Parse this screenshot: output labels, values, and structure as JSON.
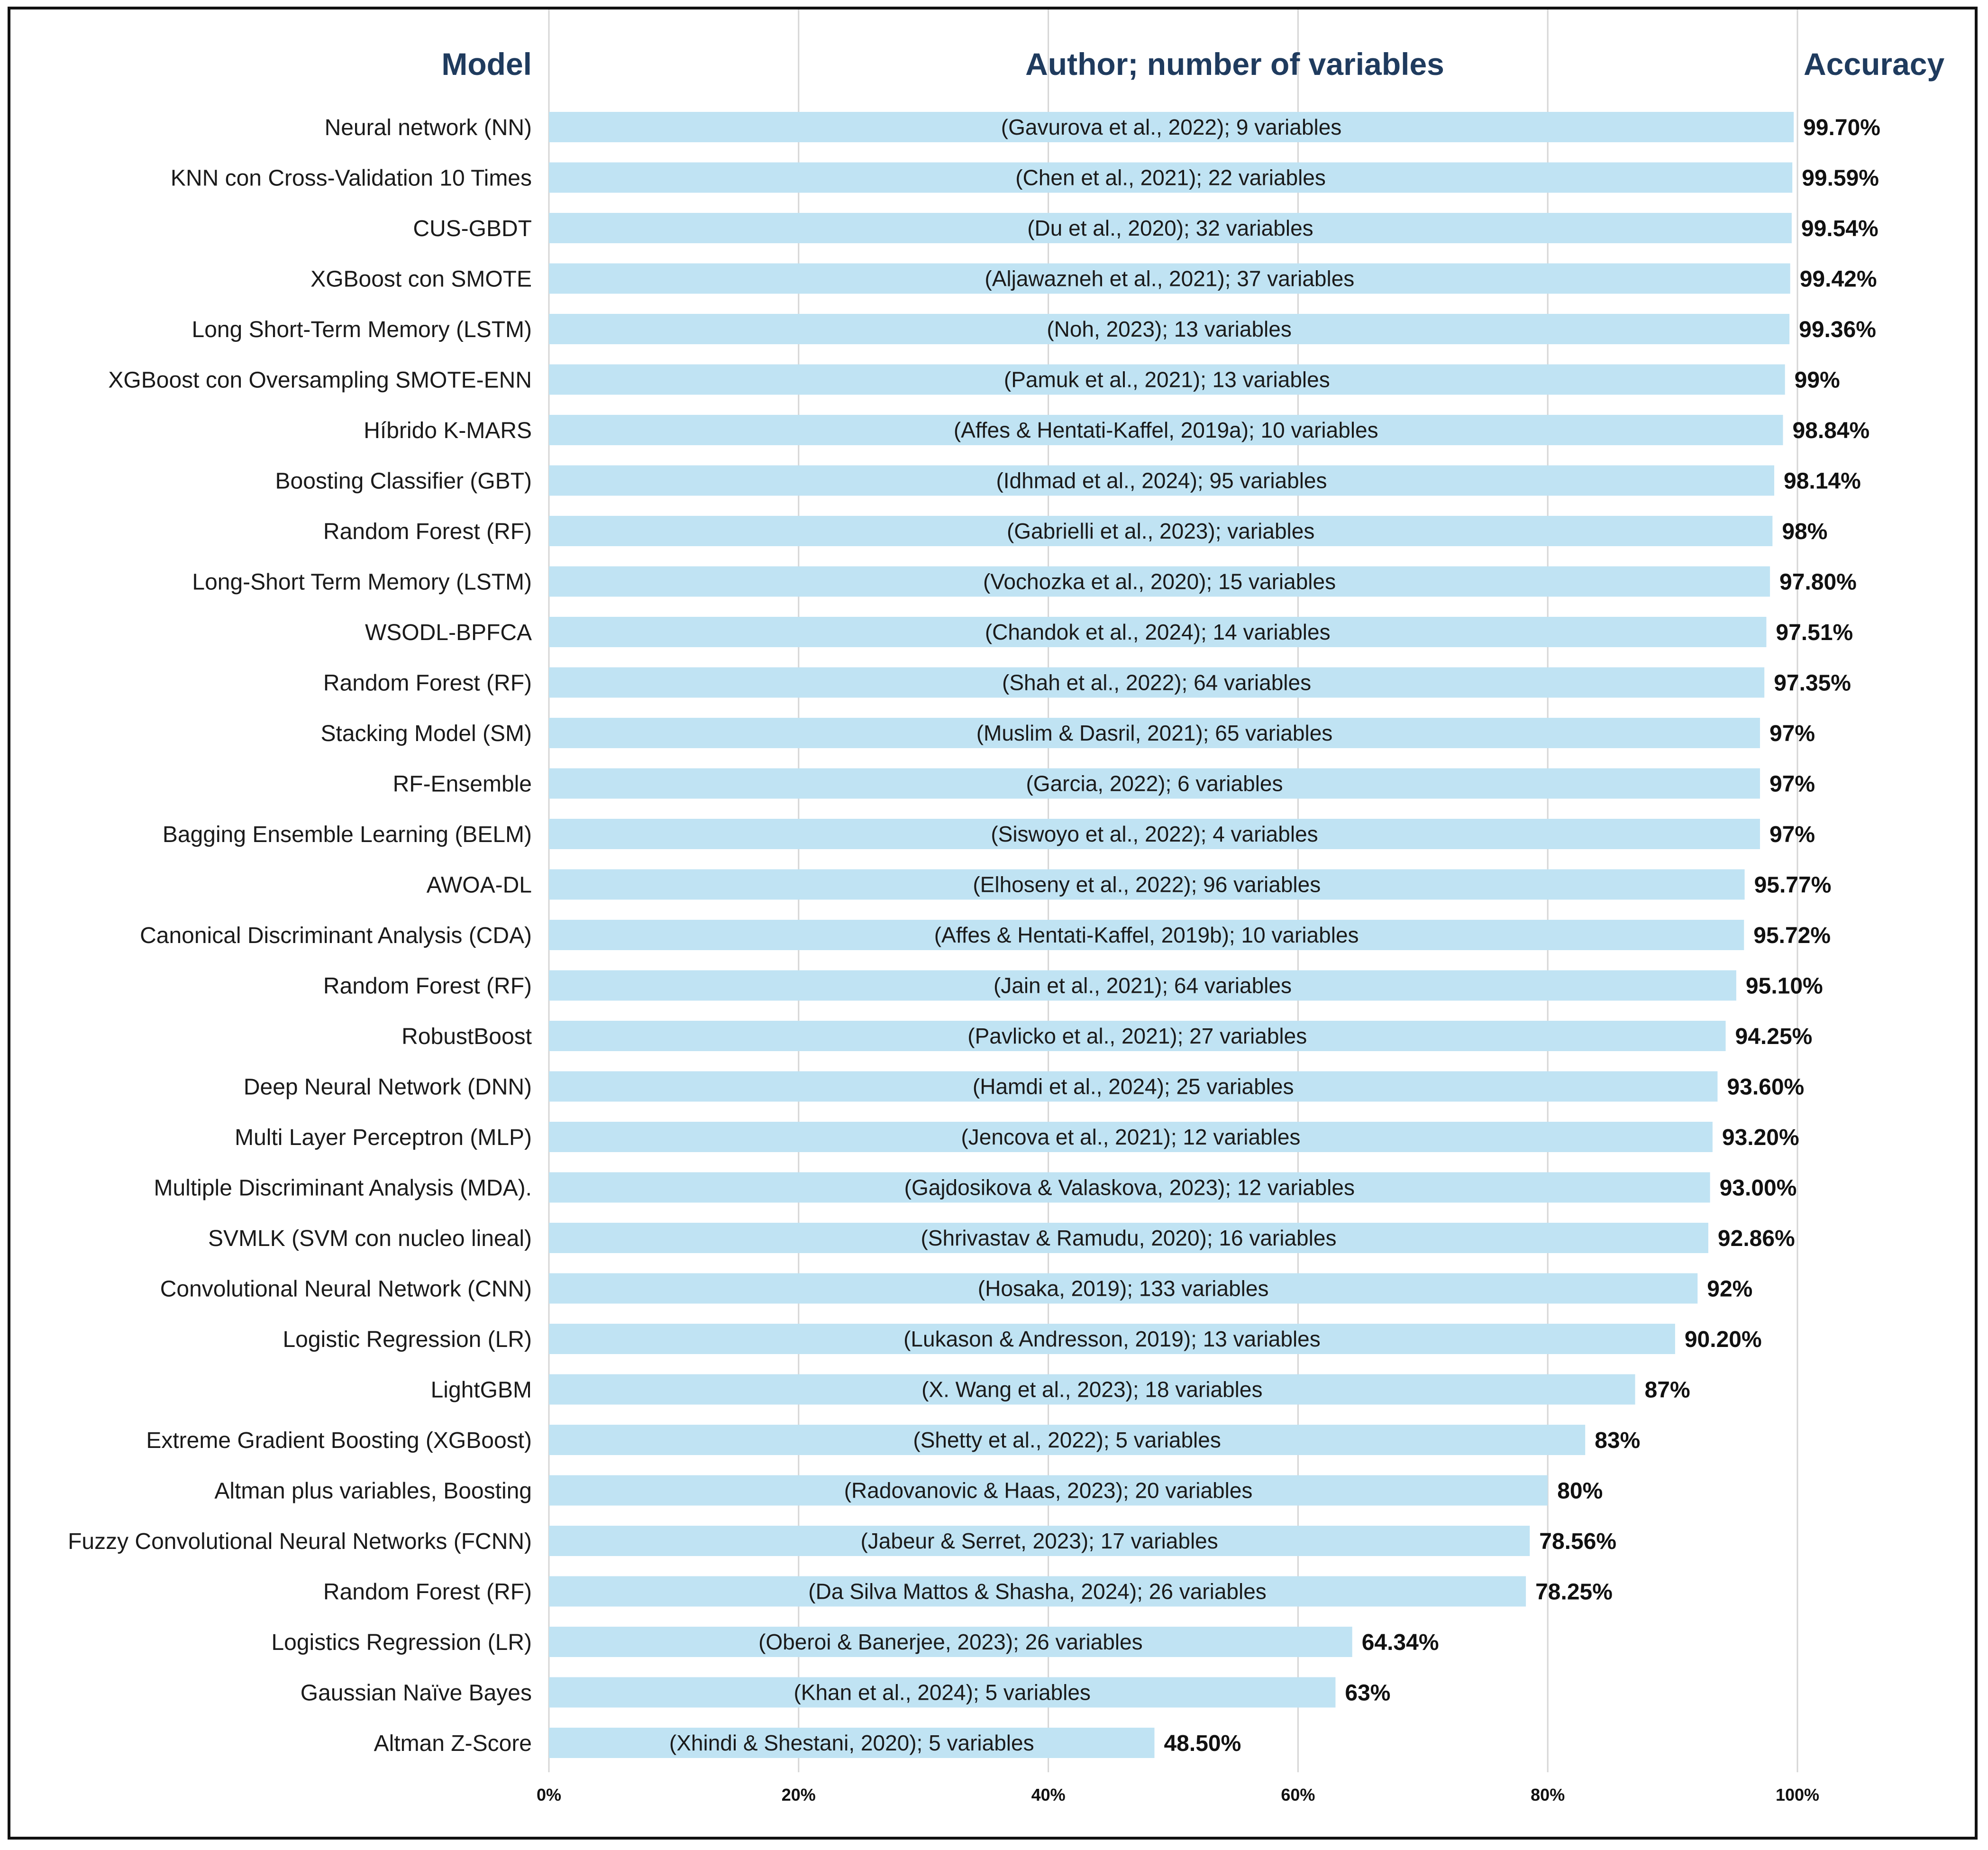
{
  "chart_data": {
    "type": "bar",
    "orientation": "horizontal",
    "title": "",
    "headers": {
      "model": "Model",
      "author": "Author; number of variables",
      "accuracy": "Accuracy"
    },
    "xlabel": "",
    "ylabel": "",
    "xlim": [
      0,
      100
    ],
    "x_ticks": [
      0,
      20,
      40,
      60,
      80,
      100
    ],
    "x_tick_labels": [
      "0%",
      "20%",
      "40%",
      "60%",
      "80%",
      "100%"
    ],
    "grid": "vertical",
    "bar_color": "#c0e3f3",
    "header_color": "#1f3b5e",
    "categories": [
      "Neural network (NN)",
      "KNN con Cross-Validation 10 Times",
      "CUS-GBDT",
      "XGBoost con SMOTE",
      "Long Short-Term Memory (LSTM)",
      "XGBoost con Oversampling  SMOTE-ENN",
      "Híbrido K-MARS",
      "Boosting Classifier (GBT)",
      "Random Forest (RF)",
      "Long-Short Term Memory (LSTM)",
      "WSODL-BPFCA",
      "Random Forest (RF)",
      "Stacking Model (SM)",
      "RF-Ensemble",
      "Bagging Ensemble Learning (BELM)",
      "AWOA-DL",
      "Canonical Discriminant Analysis (CDA)",
      "Random Forest (RF)",
      "RobustBoost",
      "Deep Neural Network (DNN)",
      "Multi Layer Perceptron (MLP)",
      "Multiple Discriminant Analysis (MDA).",
      "SVMLK (SVM con nucleo lineal)",
      "Convolutional Neural Network (CNN)",
      "Logistic Regression (LR)",
      "LightGBM",
      "Extreme Gradient Boosting (XGBoost)",
      "Altman plus  variables, Boosting",
      "Fuzzy Convolutional Neural Networks (FCNN)",
      "Random Forest (RF)",
      "Logistics Regression (LR)",
      "Gaussian Naïve Bayes",
      "Altman Z-Score"
    ],
    "authors": [
      "(Gavurova et al., 2022);  9 variables",
      "(Chen et al., 2021);  22 variables",
      "(Du et al., 2020);  32 variables",
      "(Aljawazneh et al., 2021);  37 variables",
      "(Noh, 2023);  13 variables",
      "(Pamuk et al., 2021);  13 variables",
      "(Affes & Hentati-Kaffel, 2019a);  10 variables",
      "(Idhmad et al., 2024);  95 variables",
      "(Gabrielli et al., 2023);   variables",
      "(Vochozka et al., 2020);  15 variables",
      "(Chandok et al., 2024);  14 variables",
      "(Shah et al., 2022);  64 variables",
      "(Muslim & Dasril, 2021);  65 variables",
      "(Garcia, 2022);  6 variables",
      "(Siswoyo et al., 2022);  4 variables",
      "(Elhoseny et al., 2022);  96 variables",
      "(Affes & Hentati-Kaffel, 2019b);  10 variables",
      "(Jain et al., 2021);  64 variables",
      "(Pavlicko et al., 2021);  27 variables",
      "(Hamdi et al., 2024);  25 variables",
      "(Jencova et al., 2021);  12 variables",
      "(Gajdosikova & Valaskova, 2023);  12 variables",
      "(Shrivastav & Ramudu, 2020);  16 variables",
      "(Hosaka, 2019);  133 variables",
      "(Lukason & Andresson, 2019);  13 variables",
      "(X. Wang et al., 2023);  18 variables",
      "(Shetty et al., 2022);  5 variables",
      "(Radovanovic & Haas, 2023);  20 variables",
      "(Jabeur & Serret, 2023);  17 variables",
      "(Da Silva Mattos & Shasha, 2024);  26 variables",
      "(Oberoi & Banerjee, 2023);  26 variables",
      "(Khan et al., 2024);  5 variables",
      "(Xhindi & Shestani, 2020);  5 variables"
    ],
    "values": [
      99.7,
      99.59,
      99.54,
      99.42,
      99.36,
      99,
      98.84,
      98.14,
      98,
      97.8,
      97.51,
      97.35,
      97,
      97,
      97,
      95.77,
      95.72,
      95.1,
      94.25,
      93.6,
      93.2,
      93.0,
      92.86,
      92,
      90.2,
      87,
      83,
      80,
      78.56,
      78.25,
      64.34,
      63,
      48.5
    ],
    "value_labels": [
      "99.70%",
      "99.59%",
      "99.54%",
      "99.42%",
      "99.36%",
      "99%",
      "98.84%",
      "98.14%",
      "98%",
      "97.80%",
      "97.51%",
      "97.35%",
      "97%",
      "97%",
      "97%",
      "95.77%",
      "95.72%",
      "95.10%",
      "94.25%",
      "93.60%",
      "93.20%",
      "93.00%",
      "92.86%",
      "92%",
      "90.20%",
      "87%",
      "83%",
      "80%",
      "78.56%",
      "78.25%",
      "64.34%",
      "63%",
      "48.50%"
    ]
  }
}
